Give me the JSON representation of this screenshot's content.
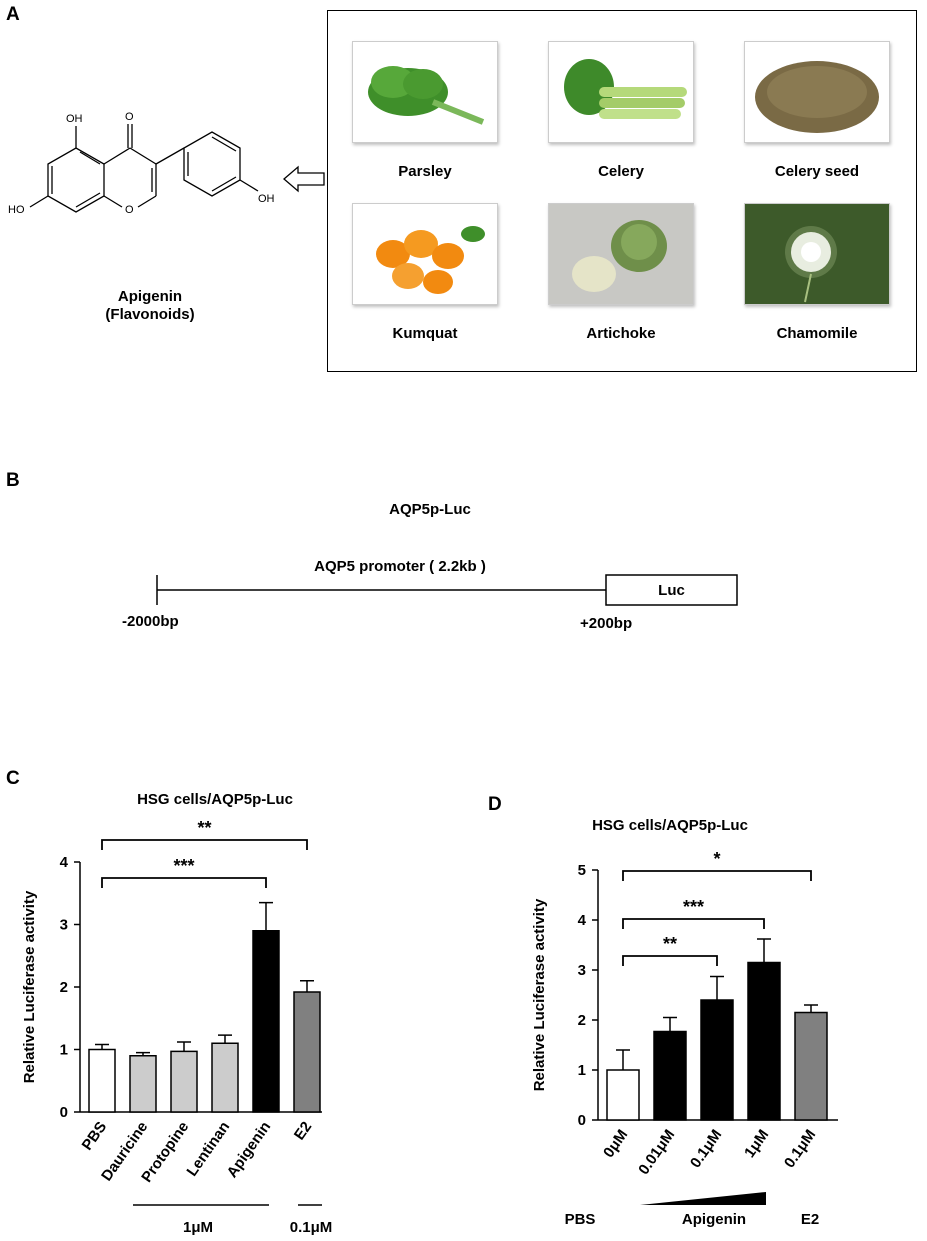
{
  "panels": {
    "a": "A",
    "b": "B",
    "c": "C",
    "d": "D"
  },
  "molecule": {
    "atoms": [
      "OH",
      "O",
      "HO",
      "O",
      "OH"
    ],
    "name": "Apigenin",
    "class": "(Flavonoids)"
  },
  "foods": [
    {
      "label": "Parsley",
      "color": "#3f8f2a"
    },
    {
      "label": "Celery",
      "color": "#a8cf6a"
    },
    {
      "label": "Celery seed",
      "color": "#7a6a45"
    },
    {
      "label": "Kumquat",
      "color": "#f28a10"
    },
    {
      "label": "Artichoke",
      "color": "#6f8f4a"
    },
    {
      "label": "Chamomile",
      "color": "#3d5a2a"
    }
  ],
  "construct": {
    "title": "AQP5p-Luc",
    "promoter": "AQP5 promoter ( 2.2kb )",
    "luc": "Luc",
    "start": "-2000bp",
    "end": "+200bp"
  },
  "chart_data": [
    {
      "type": "bar",
      "title": "HSG cells/AQP5p-Luc",
      "ylabel": "Relative Luciferase activity",
      "ylim": [
        0,
        4
      ],
      "yticks": [
        "0",
        "1",
        "2",
        "3",
        "4"
      ],
      "categories": [
        "PBS",
        "Dauricine",
        "Protopine",
        "Lentinan",
        "Apigenin",
        "E2"
      ],
      "values": [
        1.0,
        0.9,
        0.97,
        1.1,
        2.9,
        1.92
      ],
      "errors": [
        0.08,
        0.05,
        0.15,
        0.13,
        0.45,
        0.18
      ],
      "bar_colors": [
        "#ffffff",
        "#cccccc",
        "#cccccc",
        "#cccccc",
        "#000000",
        "#808080"
      ],
      "significance": [
        {
          "from": "PBS",
          "to": "E2",
          "label": "**"
        },
        {
          "from": "PBS",
          "to": "Apigenin",
          "label": "***"
        }
      ],
      "group_labels": [
        "1μM",
        "0.1μM"
      ]
    },
    {
      "type": "bar",
      "title": "HSG cells/AQP5p-Luc",
      "ylabel": "Relative Luciferase activity",
      "ylim": [
        0,
        5
      ],
      "yticks": [
        "0",
        "1",
        "2",
        "3",
        "4",
        "5"
      ],
      "categories": [
        "0μM",
        "0.01μM",
        "0.1μM",
        "1μM",
        "0.1μM"
      ],
      "values": [
        1.0,
        1.77,
        2.4,
        3.15,
        2.15
      ],
      "errors": [
        0.4,
        0.28,
        0.47,
        0.47,
        0.15
      ],
      "bar_colors": [
        "#ffffff",
        "#000000",
        "#000000",
        "#000000",
        "#808080"
      ],
      "significance": [
        {
          "from": "0μM",
          "to": "E2 0.1μM",
          "label": "*"
        },
        {
          "from": "0μM",
          "to": "1μM",
          "label": "***"
        },
        {
          "from": "0μM",
          "to": "0.1μM",
          "label": "**"
        }
      ],
      "group_labels": [
        "PBS",
        "Apigenin",
        "E2"
      ]
    }
  ]
}
